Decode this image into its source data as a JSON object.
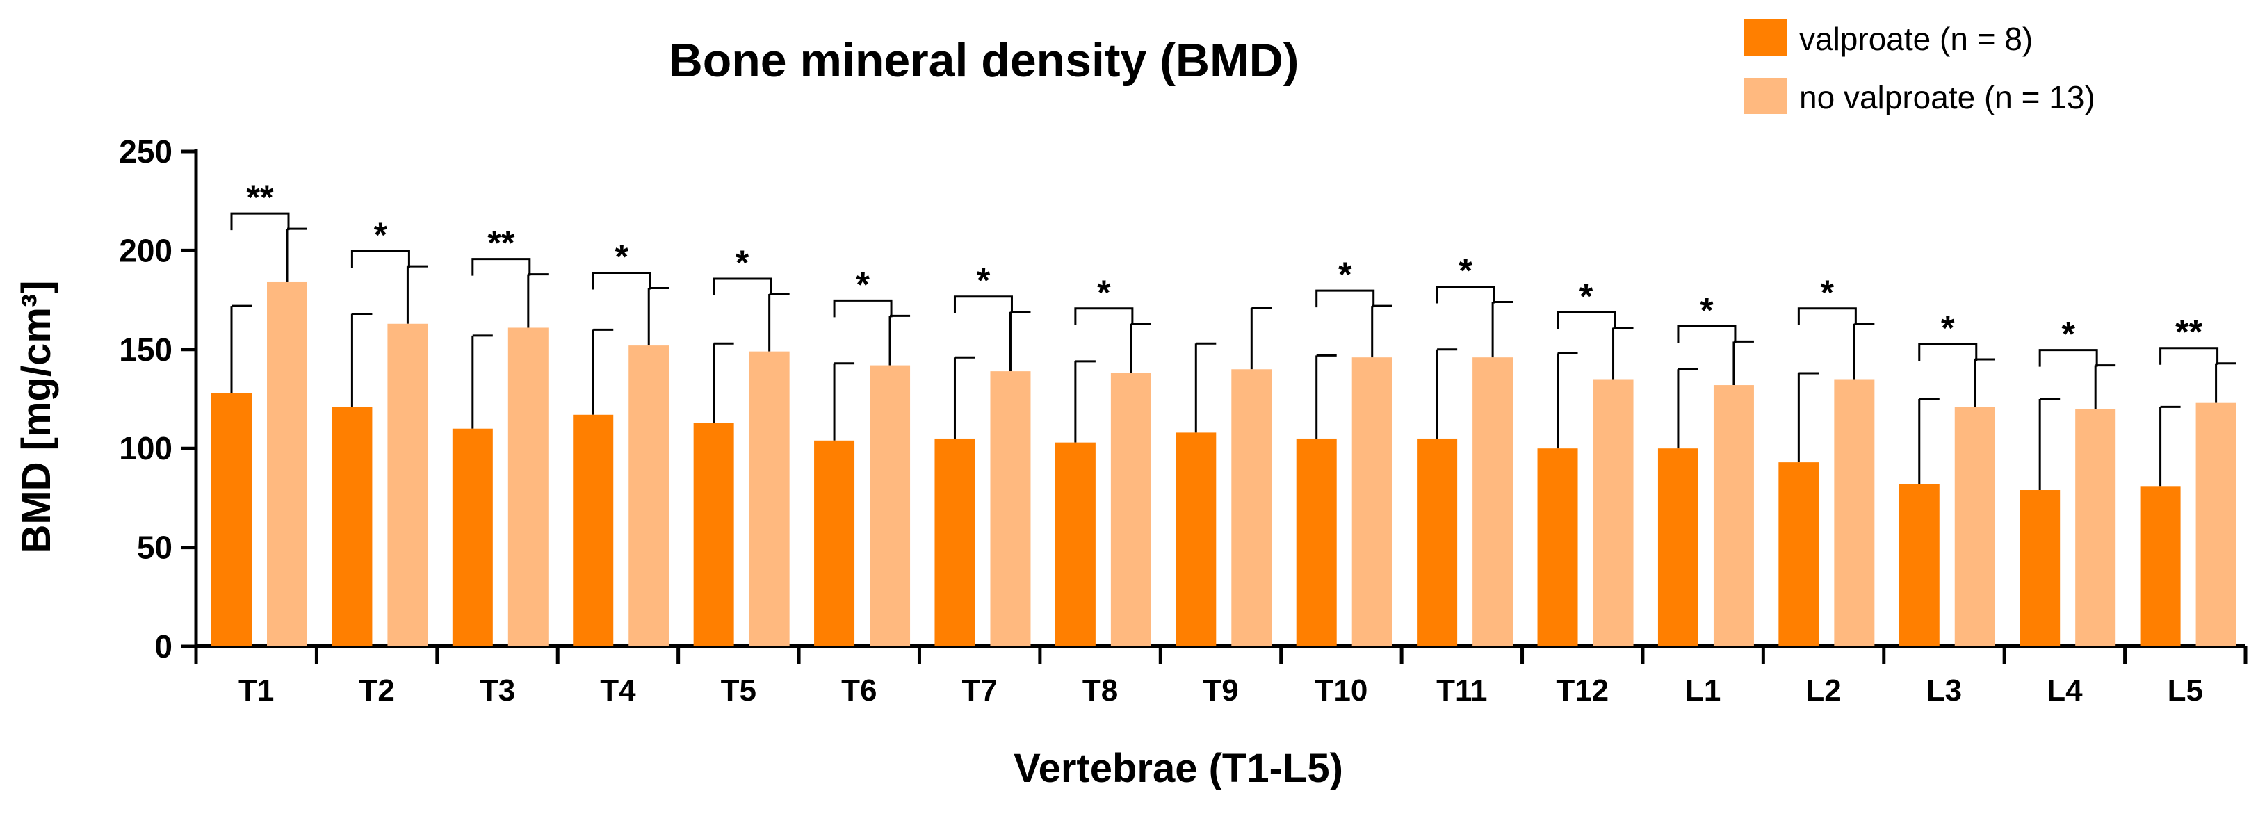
{
  "chart_data": {
    "type": "bar",
    "title": "Bone mineral density (BMD)",
    "xlabel": "Vertebrae (T1-L5)",
    "ylabel": "BMD [mg/cm³]",
    "ylim": [
      0,
      250
    ],
    "yticks": [
      0,
      50,
      100,
      150,
      200,
      250
    ],
    "categories": [
      "T1",
      "T2",
      "T3",
      "T4",
      "T5",
      "T6",
      "T7",
      "T8",
      "T9",
      "T10",
      "T11",
      "T12",
      "L1",
      "L2",
      "L3",
      "L4",
      "L5"
    ],
    "series": [
      {
        "name": "valproate (n = 8)",
        "color": "#FF7F00",
        "values": [
          128,
          121,
          110,
          117,
          113,
          104,
          105,
          103,
          108,
          105,
          105,
          100,
          100,
          93,
          82,
          79,
          81
        ],
        "error": [
          44,
          47,
          47,
          43,
          40,
          39,
          41,
          41,
          45,
          42,
          45,
          48,
          40,
          45,
          43,
          46,
          40
        ]
      },
      {
        "name": "no valproate (n = 13)",
        "color": "#FFB97F",
        "values": [
          184,
          163,
          161,
          152,
          149,
          142,
          139,
          138,
          140,
          146,
          146,
          135,
          132,
          135,
          121,
          120,
          123
        ],
        "error": [
          27,
          29,
          27,
          29,
          29,
          25,
          30,
          25,
          31,
          26,
          28,
          26,
          22,
          28,
          24,
          22,
          20
        ]
      }
    ],
    "significance": [
      "**",
      "*",
      "**",
      "*",
      "*",
      "*",
      "*",
      "*",
      "",
      "*",
      "*",
      "*",
      "*",
      "*",
      "*",
      "*",
      "**"
    ],
    "legend_position": "top-right"
  }
}
